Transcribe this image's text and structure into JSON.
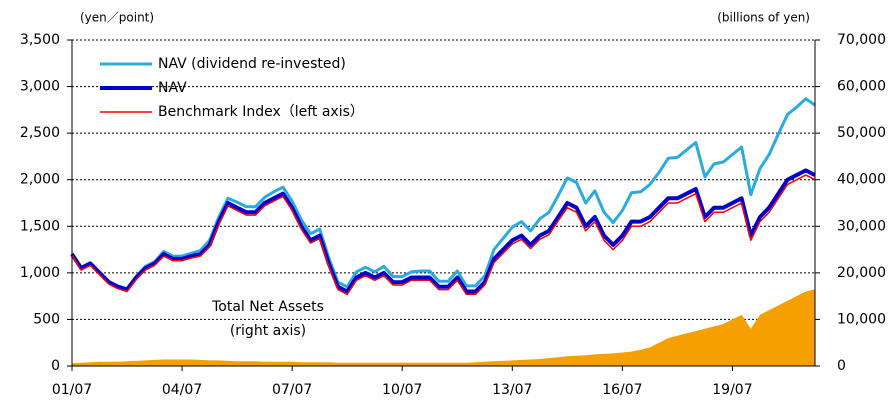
{
  "chart_data": {
    "type": "line",
    "ylabel": "(yen／point)",
    "y2label": "(billions of yen)",
    "annotations": [
      "(right axis)"
    ],
    "categories": [
      "01/07",
      null,
      null,
      null,
      null,
      null,
      null,
      null,
      null,
      null,
      null,
      null,
      "04/07",
      null,
      null,
      null,
      null,
      null,
      null,
      null,
      null,
      null,
      null,
      null,
      "07/07",
      null,
      null,
      null,
      null,
      null,
      null,
      null,
      null,
      null,
      null,
      null,
      "10/07",
      null,
      null,
      null,
      null,
      null,
      null,
      null,
      null,
      null,
      null,
      null,
      "13/07",
      null,
      null,
      null,
      null,
      null,
      null,
      null,
      null,
      null,
      null,
      null,
      "16/07",
      null,
      null,
      null,
      null,
      null,
      null,
      null,
      null,
      null,
      null,
      null,
      "19/07",
      null,
      null,
      null,
      null,
      null,
      null,
      null,
      null,
      null
    ],
    "ylim": [
      0,
      3500
    ],
    "yticks": [
      0,
      500,
      {
        "value": 1000,
        "label": "1,000"
      },
      {
        "value": 1500,
        "label": "1,500"
      },
      {
        "value": 2000,
        "label": "2,000"
      },
      {
        "value": 2500,
        "label": "2,500"
      },
      {
        "value": 3000,
        "label": "3,000"
      },
      {
        "value": 3500,
        "label": "3,500"
      }
    ],
    "y2lim": [
      0,
      70000
    ],
    "y2ticks": [
      0,
      {
        "value": 10000,
        "label": "10,000"
      },
      {
        "value": 20000,
        "label": "20,000"
      },
      {
        "value": 30000,
        "label": "30,000"
      },
      {
        "value": 40000,
        "label": "40,000"
      },
      {
        "value": 50000,
        "label": "50,000"
      },
      {
        "value": 60000,
        "label": "60,000"
      },
      {
        "value": 70000,
        "label": "70,000"
      }
    ],
    "grid": true,
    "legend": "upper left",
    "series": [
      {
        "name": "Total Net Assets",
        "kind": "area",
        "axis": "y2",
        "color": "#f5a000",
        "values": [
          600,
          700,
          800,
          900,
          900,
          900,
          1000,
          1100,
          1200,
          1300,
          1400,
          1400,
          1400,
          1400,
          1300,
          1200,
          1200,
          1100,
          1000,
          1000,
          1000,
          900,
          900,
          900,
          900,
          800,
          800,
          800,
          800,
          700,
          700,
          700,
          700,
          700,
          700,
          700,
          700,
          700,
          700,
          700,
          700,
          700,
          700,
          700,
          800,
          900,
          1000,
          1100,
          1200,
          1300,
          1400,
          1500,
          1700,
          1900,
          2100,
          2200,
          2300,
          2500,
          2600,
          2700,
          2900,
          3100,
          3500,
          4000,
          5000,
          6000,
          6500,
          7000,
          7500,
          8000,
          8500,
          9000,
          10000,
          11000,
          8000,
          11000,
          12000,
          13000,
          14000,
          15000,
          16000,
          16500
        ]
      },
      {
        "name": "NAV (dividend re-invested)",
        "color": "#29abe2",
        "width": 3,
        "values": [
          1210,
          1060,
          1110,
          1010,
          910,
          860,
          830,
          960,
          1070,
          1120,
          1230,
          1180,
          1180,
          1210,
          1240,
          1350,
          1600,
          1800,
          1760,
          1710,
          1710,
          1810,
          1870,
          1920,
          1770,
          1570,
          1420,
          1470,
          1160,
          900,
          850,
          1010,
          1060,
          1010,
          1070,
          960,
          960,
          1010,
          1020,
          1020,
          910,
          910,
          1020,
          860,
          860,
          970,
          1250,
          1370,
          1490,
          1550,
          1450,
          1580,
          1650,
          1830,
          2020,
          1970,
          1750,
          1880,
          1650,
          1540,
          1670,
          1860,
          1870,
          1950,
          2080,
          2230,
          2240,
          2320,
          2400,
          2030,
          2170,
          2190,
          2270,
          2350,
          1840,
          2120,
          2270,
          2490,
          2700,
          2780,
          2870,
          2800
        ]
      },
      {
        "name": "NAV",
        "color": "#0000cc",
        "width": 4,
        "values": [
          1200,
          1050,
          1100,
          1000,
          900,
          850,
          820,
          950,
          1050,
          1100,
          1200,
          1150,
          1150,
          1180,
          1200,
          1300,
          1550,
          1750,
          1700,
          1650,
          1650,
          1750,
          1800,
          1850,
          1700,
          1500,
          1350,
          1400,
          1100,
          850,
          800,
          950,
          1000,
          950,
          1000,
          900,
          900,
          950,
          950,
          950,
          850,
          850,
          950,
          800,
          800,
          900,
          1150,
          1250,
          1350,
          1400,
          1300,
          1400,
          1450,
          1600,
          1750,
          1700,
          1500,
          1600,
          1400,
          1300,
          1400,
          1550,
          1550,
          1600,
          1700,
          1800,
          1800,
          1850,
          1900,
          1600,
          1700,
          1700,
          1750,
          1800,
          1400,
          1600,
          1700,
          1850,
          2000,
          2050,
          2100,
          2050
        ]
      },
      {
        "name": "Benchmark Index（left axis）",
        "color": "#ff0000",
        "width": 1.5,
        "values": [
          1190,
          1030,
          1080,
          980,
          880,
          830,
          800,
          930,
          1030,
          1080,
          1180,
          1130,
          1130,
          1160,
          1180,
          1280,
          1520,
          1720,
          1670,
          1620,
          1620,
          1720,
          1770,
          1820,
          1670,
          1470,
          1320,
          1370,
          1070,
          820,
          770,
          920,
          970,
          920,
          970,
          870,
          870,
          920,
          920,
          920,
          820,
          820,
          920,
          770,
          770,
          870,
          1110,
          1210,
          1310,
          1360,
          1260,
          1360,
          1410,
          1560,
          1700,
          1650,
          1450,
          1550,
          1350,
          1250,
          1350,
          1500,
          1500,
          1550,
          1650,
          1750,
          1750,
          1800,
          1850,
          1550,
          1650,
          1650,
          1700,
          1750,
          1350,
          1550,
          1650,
          1800,
          1950,
          2000,
          2050,
          2000
        ]
      }
    ]
  }
}
